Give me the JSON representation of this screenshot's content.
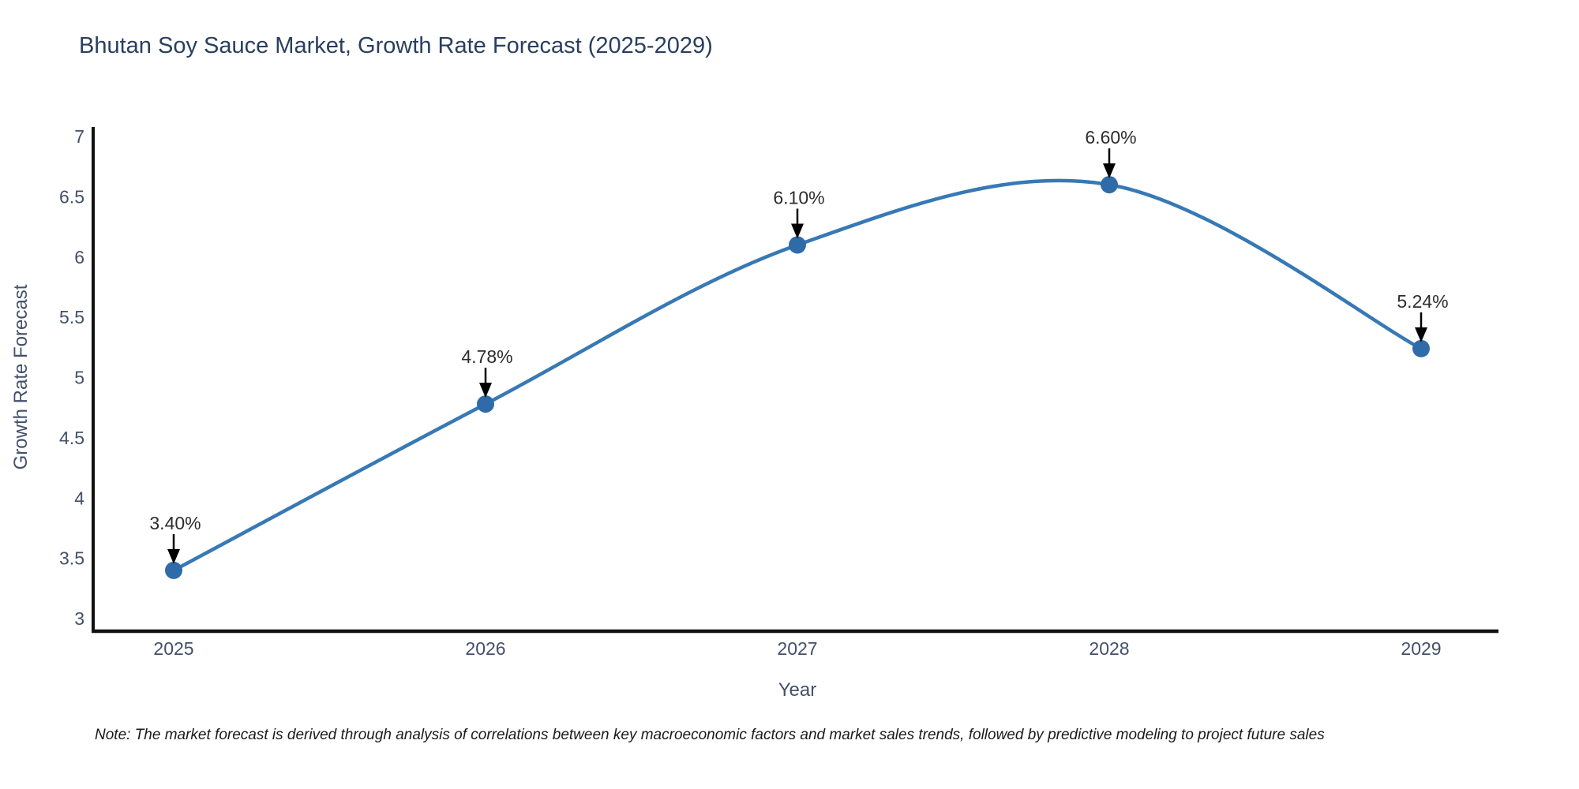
{
  "header": {
    "title": "Bhutan Soy Sauce Market, Growth Rate Forecast (2025-2029)"
  },
  "footnote": "Note: The market forecast is derived through analysis of correlations between key macroeconomic factors and market sales trends, followed by predictive modeling to project future sales",
  "chart_data": {
    "type": "line",
    "title": "Bhutan Soy Sauce Market, Growth Rate Forecast (2025-2029)",
    "xlabel": "Year",
    "ylabel": "Growth Rate Forecast",
    "categories": [
      "2025",
      "2026",
      "2027",
      "2028",
      "2029"
    ],
    "values": [
      3.4,
      4.78,
      6.1,
      6.6,
      5.24
    ],
    "point_labels": [
      "3.40%",
      "4.78%",
      "6.10%",
      "6.60%",
      "5.24%"
    ],
    "ylim": [
      3,
      7
    ],
    "yticks": [
      7,
      6.5,
      6,
      5.5,
      5,
      4.5,
      4,
      3.5,
      3
    ],
    "line_shape": "spline",
    "grid": false,
    "legend_position": "none",
    "annotations_have_arrows": true,
    "colors": {
      "line": "#3779b5",
      "marker": "#2f6ba8",
      "arrow": "#000000",
      "axis_line": "#111111",
      "title_text": "#2a3f5f",
      "axis_text": "#43506a",
      "annotation_text": "#2d2d2d"
    }
  }
}
